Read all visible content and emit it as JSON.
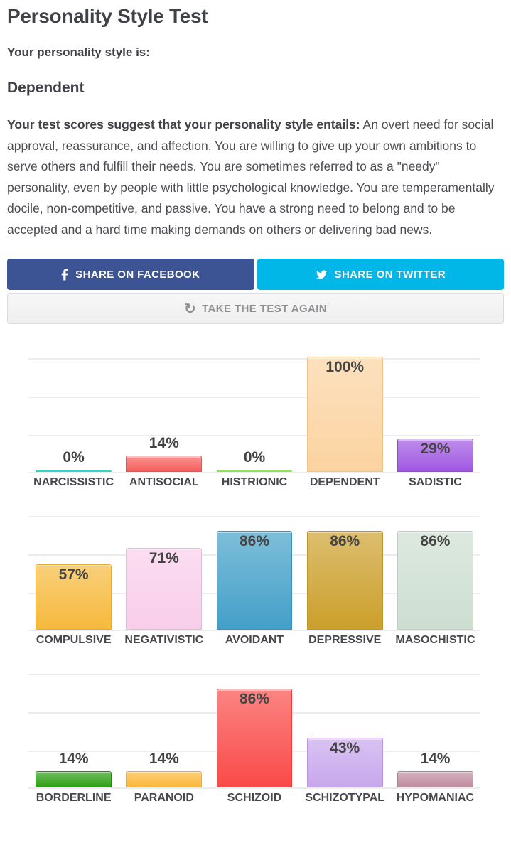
{
  "page": {
    "title": "Personality Style Test",
    "subtitle": "Your personality style is:",
    "result_name": "Dependent",
    "description_lead": "Your test scores suggest that your personality style entails:",
    "description_body": "An overt need for social approval, reassurance, and affection. You are willing to give up your own ambitions to serve others and fulfill their needs. You are sometimes referred to as a \"needy\" personality, even by people with little psychological knowledge. You are temperamentally docile, non-competitive, and passive. You have a strong need to belong and to be accepted and a hard time making demands on others or delivering bad news."
  },
  "buttons": {
    "facebook": {
      "label": "SHARE ON FACEBOOK",
      "bg": "#3d5494",
      "icon": "facebook-f-icon"
    },
    "twitter": {
      "label": "SHARE ON TWITTER",
      "bg": "#00b7e8",
      "icon": "twitter-bird-icon"
    },
    "retake": {
      "label": "TAKE THE TEST AGAIN",
      "icon": "refresh-icon",
      "glyph": "↻",
      "text_color": "#8f9094"
    }
  },
  "style": {
    "grid_color": "#ededed",
    "value_label_color": "#444444",
    "heading_color": "#414247"
  },
  "chart_data": [
    {
      "type": "bar",
      "categories": [
        "NARCISSISTIC",
        "ANTISOCIAL",
        "HISTRIONIC",
        "DEPENDENT",
        "SADISTIC"
      ],
      "values": [
        0,
        14,
        0,
        100,
        29
      ],
      "bar_colors": [
        "#30d5c8",
        "#f6605d",
        "#8de356",
        "#fbd3a0",
        "#a058e2"
      ],
      "border_colors": [
        "#30d5c8",
        "#ee4f4d",
        "#8de356",
        "#f2c287",
        "#9448d6"
      ],
      "value_suffix": "%",
      "ylim": [
        0,
        100
      ],
      "grid": true,
      "gridline_values": [
        0,
        33,
        67,
        100
      ],
      "legend": false,
      "title": "",
      "xlabel": "",
      "ylabel": ""
    },
    {
      "type": "bar",
      "categories": [
        "COMPULSIVE",
        "NEGATIVISTIC",
        "AVOIDANT",
        "DEPRESSIVE",
        "MASOCHISTIC"
      ],
      "values": [
        57,
        71,
        86,
        86,
        86
      ],
      "bar_colors": [
        "#f6b93c",
        "#f9cdea",
        "#429fc8",
        "#cb9f2b",
        "#cdded1"
      ],
      "border_colors": [
        "#e9ab2f",
        "#f0b3de",
        "#3b93bd",
        "#bf942a",
        "#bcd2c0"
      ],
      "value_suffix": "%",
      "ylim": [
        0,
        100
      ],
      "grid": true,
      "gridline_values": [
        0,
        33,
        67,
        100
      ],
      "legend": false,
      "title": "",
      "xlabel": "",
      "ylabel": ""
    },
    {
      "type": "bar",
      "categories": [
        "BORDERLINE",
        "PARANOID",
        "SCHIZOID",
        "SCHIZOTYPAL",
        "HYPOMANIAC"
      ],
      "values": [
        14,
        14,
        86,
        43,
        14
      ],
      "bar_colors": [
        "#2da014",
        "#fcb838",
        "#f94a48",
        "#c7a7ec",
        "#c08da0"
      ],
      "border_colors": [
        "#268c10",
        "#f3ab27",
        "#ee3c3a",
        "#b996e3",
        "#b37d92"
      ],
      "value_suffix": "%",
      "ylim": [
        0,
        100
      ],
      "grid": true,
      "gridline_values": [
        0,
        33,
        67,
        100
      ],
      "legend": false,
      "title": "",
      "xlabel": "",
      "ylabel": ""
    }
  ]
}
